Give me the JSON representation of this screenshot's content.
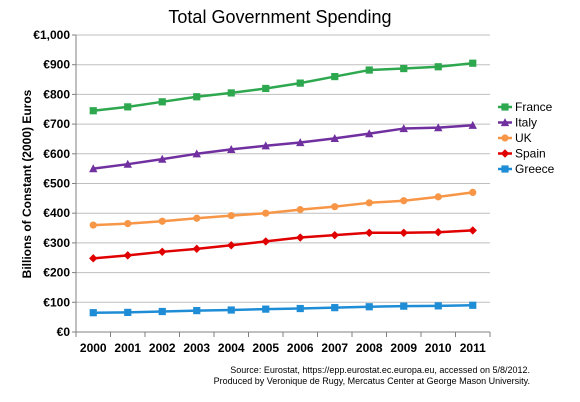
{
  "chart_data": {
    "type": "line",
    "title": "Total Government Spending",
    "ylabel": "Billions of Constant (2000) Euros",
    "xlabel": "",
    "categories": [
      "2000",
      "2001",
      "2002",
      "2003",
      "2004",
      "2005",
      "2006",
      "2007",
      "2008",
      "2009",
      "2010",
      "2011"
    ],
    "ylim": [
      0,
      1000
    ],
    "yticks": [
      0,
      100,
      200,
      300,
      400,
      500,
      600,
      700,
      800,
      900,
      1000
    ],
    "ytick_labels": [
      "€0",
      "€100",
      "€200",
      "€300",
      "€400",
      "€500",
      "€600",
      "€700",
      "€800",
      "€900",
      "€1,000"
    ],
    "grid": true,
    "legend_position": "right",
    "series": [
      {
        "name": "France",
        "color": "#2ea84f",
        "marker": "square",
        "values": [
          745,
          758,
          775,
          792,
          805,
          820,
          838,
          860,
          882,
          887,
          893,
          905
        ]
      },
      {
        "name": "Italy",
        "color": "#7030a0",
        "marker": "triangle",
        "values": [
          550,
          565,
          582,
          600,
          615,
          627,
          638,
          652,
          668,
          685,
          688,
          696
        ]
      },
      {
        "name": "UK",
        "color": "#f79646",
        "marker": "circle",
        "values": [
          360,
          365,
          373,
          383,
          392,
          400,
          412,
          422,
          435,
          442,
          455,
          470
        ]
      },
      {
        "name": "Spain",
        "color": "#e00000",
        "marker": "diamond",
        "values": [
          248,
          258,
          270,
          280,
          292,
          305,
          318,
          326,
          334,
          334,
          336,
          342
        ]
      },
      {
        "name": "Greece",
        "color": "#1f8dd6",
        "marker": "square",
        "values": [
          65,
          66,
          69,
          72,
          74,
          77,
          79,
          82,
          85,
          87,
          88,
          90
        ]
      }
    ]
  },
  "source": {
    "line1": "Source: Eurostat, https://epp.eurostat.ec.europa.eu, accessed on 5/8/2012.",
    "line2": "Produced by Veronique de Rugy, Mercatus Center at George Mason University."
  }
}
